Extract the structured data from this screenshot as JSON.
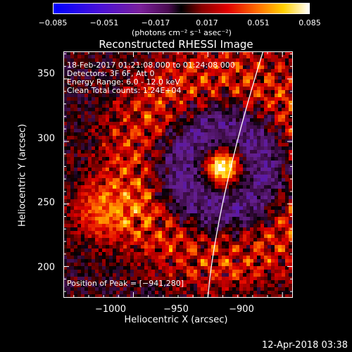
{
  "chart_data": {
    "type": "heatmap",
    "title": "Reconstructed RHESSI Image",
    "xlabel": "Heliocentric X (arcsec)",
    "ylabel": "Heliocentric Y (arcsec)",
    "xlim": [
      -1047,
      -950.0
    ],
    "xlim_full": [
      -1047,
      -893
    ],
    "ylim": [
      175,
      372
    ],
    "x_ticks": [
      "−1000",
      "−950",
      "−900"
    ],
    "y_ticks": [
      "350",
      "300",
      "250",
      "200"
    ],
    "colorbar": {
      "range": [
        -0.085,
        0.085
      ],
      "tick_labels": [
        "−0.085",
        "−0.051",
        "−0.017",
        "0.017",
        "0.051",
        "0.085"
      ],
      "unit_label": "(photons cm⁻² s⁻¹ asec⁻²)"
    },
    "annotations": [
      "18-Feb-2017 01:21:08.000 to 01:24:08.000",
      "Detectors: 3F 6F, Att 0",
      "Energy Range: 6.0 - 12.0 keV",
      "Clean    Total counts: 1.24E+04"
    ],
    "peak_label": "Position of Peak = [−941,280]",
    "peak": {
      "x": -941,
      "y": 280
    }
  },
  "timestamp": "12-Apr-2018 03:38"
}
